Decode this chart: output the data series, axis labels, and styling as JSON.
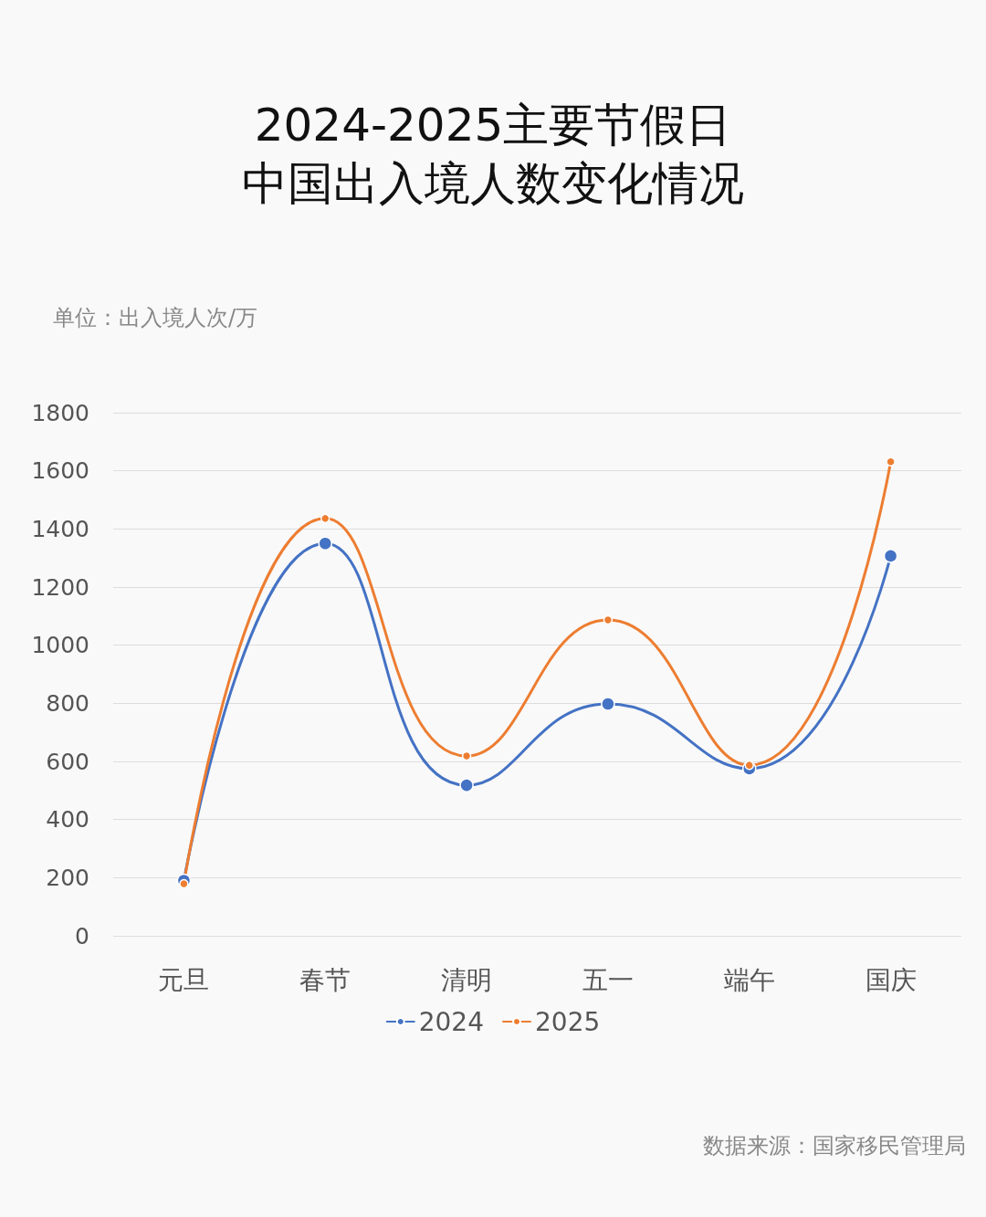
{
  "chart_data": {
    "type": "line",
    "title": "2024-2025主要节假日中国出入境人数变化情况",
    "ylabel": "单位：出入境人次/万",
    "categories": [
      "元旦",
      "春节",
      "清明",
      "五一",
      "端午",
      "国庆"
    ],
    "series": [
      {
        "name": "2024",
        "color": "#4472c4",
        "values": [
          190,
          1350,
          518,
          798,
          575,
          1307
        ]
      },
      {
        "name": "2025",
        "color": "#ed7d31",
        "values": [
          179,
          1436,
          619,
          1087,
          587,
          1631
        ]
      }
    ],
    "ylim": [
      0,
      1800
    ],
    "yticks": [
      0,
      200,
      400,
      600,
      800,
      1000,
      1200,
      1400,
      1600,
      1800
    ],
    "grid": "y",
    "legend": "bottom",
    "marker": "circle",
    "line_style": "solid",
    "annotations": [
      "数据来源：国家移民管理局"
    ]
  }
}
